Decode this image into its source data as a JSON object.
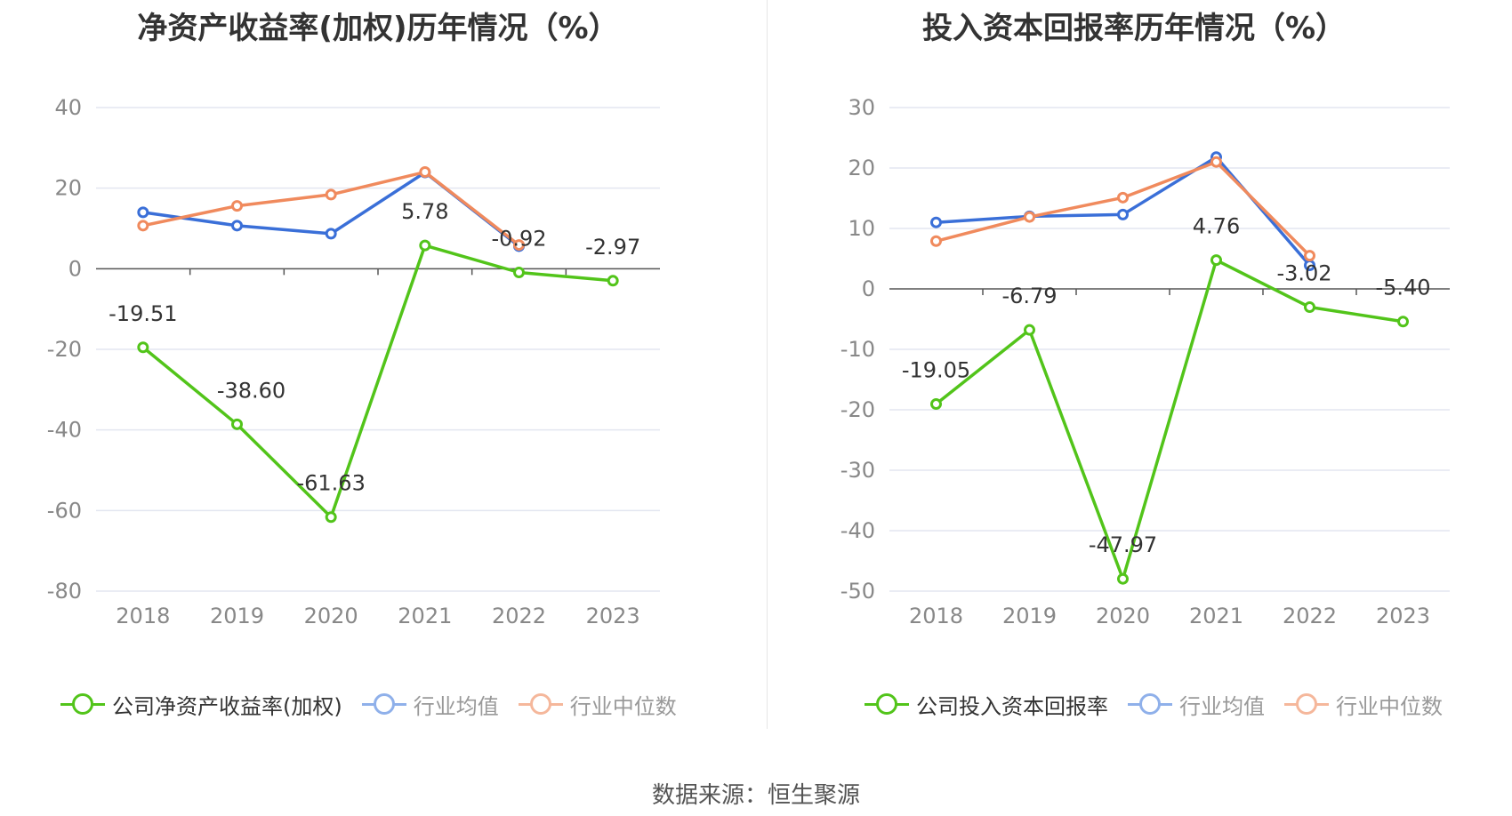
{
  "source_text": "数据来源：恒生聚源",
  "colors": {
    "company": "#52c41a",
    "avg": "#3a6fd8",
    "median": "#f08a5d",
    "avg_legend": "#8fb0ea",
    "median_legend": "#f5b79b",
    "grid": "#e3e6f0",
    "axis": "#555555",
    "tick": "#888888",
    "label": "#333333"
  },
  "chart_data": [
    {
      "type": "line",
      "title": "净资产收益率(加权)历年情况（%）",
      "categories": [
        "2018",
        "2019",
        "2020",
        "2021",
        "2022",
        "2023"
      ],
      "ylim": [
        -80,
        40
      ],
      "yticks": [
        40,
        20,
        0,
        -20,
        -40,
        -60,
        -80
      ],
      "series": [
        {
          "name": "公司净资产收益率(加权)",
          "key": "company",
          "values": [
            -19.51,
            -38.6,
            -61.63,
            5.78,
            -0.92,
            -2.97
          ],
          "labels": [
            "-19.51",
            "-38.60",
            "-61.63",
            "5.78",
            "-0.92",
            "-2.97"
          ]
        },
        {
          "name": "行业均值",
          "key": "avg",
          "values": [
            14.0,
            10.7,
            8.7,
            23.9,
            5.6,
            null
          ]
        },
        {
          "name": "行业中位数",
          "key": "median",
          "values": [
            10.7,
            15.6,
            18.4,
            24.0,
            5.9,
            null
          ]
        }
      ]
    },
    {
      "type": "line",
      "title": "投入资本回报率历年情况（%）",
      "categories": [
        "2018",
        "2019",
        "2020",
        "2021",
        "2022",
        "2023"
      ],
      "ylim": [
        -50,
        30
      ],
      "yticks": [
        30,
        20,
        10,
        0,
        -10,
        -20,
        -30,
        -40,
        -50
      ],
      "series": [
        {
          "name": "公司投入资本回报率",
          "key": "company",
          "values": [
            -19.05,
            -6.79,
            -47.97,
            4.76,
            -3.02,
            -5.4
          ],
          "labels": [
            "-19.05",
            "-6.79",
            "-47.97",
            "4.76",
            "-3.02",
            "-5.40"
          ]
        },
        {
          "name": "行业均值",
          "key": "avg",
          "values": [
            11.0,
            12.0,
            12.3,
            21.8,
            3.9,
            null
          ]
        },
        {
          "name": "行业中位数",
          "key": "median",
          "values": [
            7.9,
            11.9,
            15.1,
            21.0,
            5.5,
            null
          ]
        }
      ]
    }
  ]
}
